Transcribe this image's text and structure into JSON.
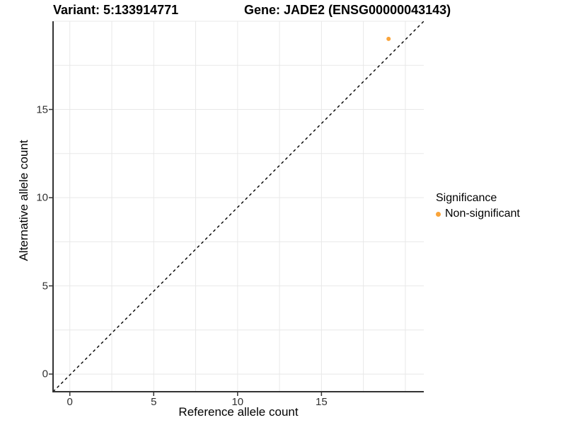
{
  "chart_data": {
    "type": "scatter",
    "title_variant": "Variant: 5:133914771",
    "title_gene": "Gene: JADE2 (ENSG00000043143)",
    "xlabel": "Reference allele count",
    "ylabel": "Alternative allele count",
    "xlim": [
      -1,
      21.1
    ],
    "ylim": [
      -1,
      20
    ],
    "x_ticks": [
      0,
      5,
      10,
      15
    ],
    "y_ticks": [
      0,
      5,
      10,
      15
    ],
    "grid": {
      "on": true,
      "minor_step": 2.5
    },
    "reference_line": {
      "equation": "y = x",
      "style": "dashed",
      "color": "#000000"
    },
    "series": [
      {
        "name": "Non-significant",
        "color": "#FAA43A",
        "points": [
          {
            "x": 19,
            "y": 19
          }
        ]
      }
    ],
    "legend": {
      "position": "right",
      "title": "Significance",
      "entries": [
        {
          "label": "Non-significant",
          "color": "#FAA43A"
        }
      ]
    },
    "colors": {
      "axis_line": "#333333",
      "grid_line": "#E8E8E8",
      "tick_text": "#303030",
      "background": "#FFFFFF"
    }
  }
}
